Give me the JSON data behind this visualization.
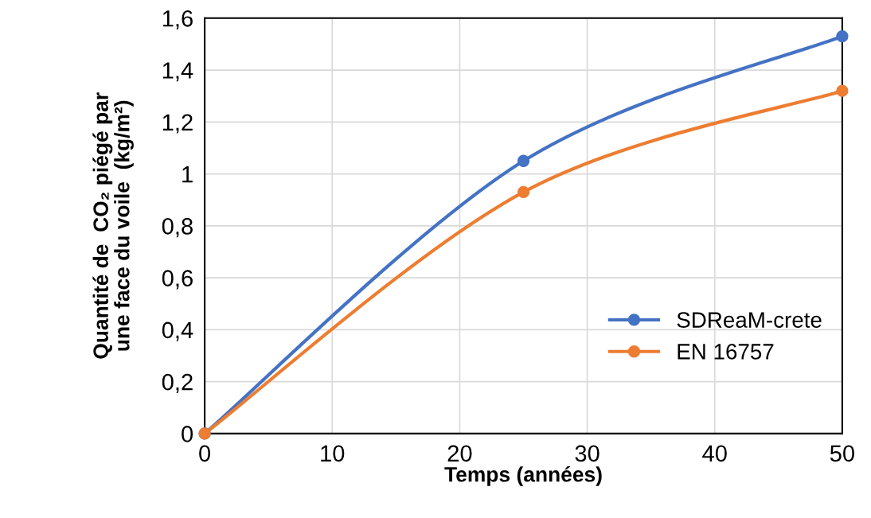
{
  "chart_data": {
    "type": "line",
    "xlabel": "Temps (années)",
    "ylabel": "Quantité de  CO₂ piégé par\nune face du voile  (kg/m²)",
    "x": [
      0,
      25,
      50
    ],
    "series": [
      {
        "name": "SDReaM-crete",
        "color": "#4472c4",
        "values": [
          0,
          1.05,
          1.53
        ]
      },
      {
        "name": "EN 16757",
        "color": "#ed7d31",
        "values": [
          0,
          0.93,
          1.32
        ]
      }
    ],
    "xlim": [
      0,
      50
    ],
    "xticks": [
      0,
      10,
      20,
      30,
      40,
      50
    ],
    "ylim": [
      0,
      1.6
    ],
    "yticks": [
      0,
      {
        "value": 0.2,
        "label": "0,2"
      },
      {
        "value": 0.4,
        "label": "0,4"
      },
      {
        "value": 0.6,
        "label": "0,6"
      },
      {
        "value": 0.8,
        "label": "0,8"
      },
      1,
      {
        "value": 1.2,
        "label": "1,2"
      },
      {
        "value": 1.4,
        "label": "1,4"
      },
      {
        "value": 1.6,
        "label": "1,6"
      }
    ],
    "grid": true,
    "legend": "lower right",
    "marker": "circle",
    "line_style": "solid"
  }
}
